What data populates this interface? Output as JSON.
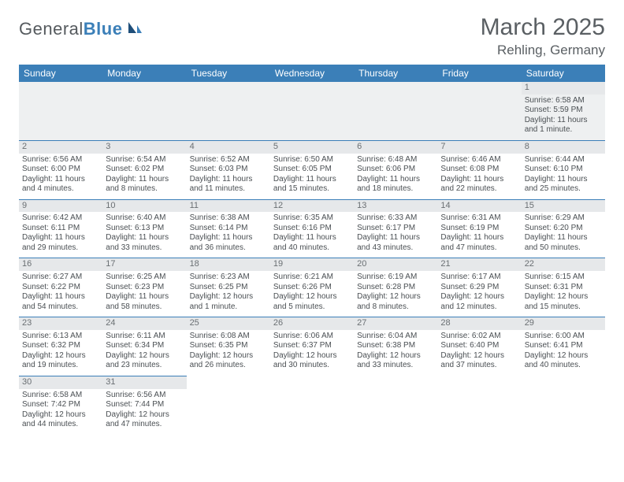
{
  "logo": {
    "text_general": "General",
    "text_blue": "Blue"
  },
  "title": "March 2025",
  "location": "Rehling, Germany",
  "colors": {
    "header_bg": "#3b7fb8",
    "daynum_bg": "#e6e8ea",
    "border": "#3b7fb8"
  },
  "weekdays": [
    "Sunday",
    "Monday",
    "Tuesday",
    "Wednesday",
    "Thursday",
    "Friday",
    "Saturday"
  ],
  "weeks": [
    [
      null,
      null,
      null,
      null,
      null,
      null,
      {
        "n": "1",
        "sr": "Sunrise: 6:58 AM",
        "ss": "Sunset: 5:59 PM",
        "dl": "Daylight: 11 hours and 1 minute."
      }
    ],
    [
      {
        "n": "2",
        "sr": "Sunrise: 6:56 AM",
        "ss": "Sunset: 6:00 PM",
        "dl": "Daylight: 11 hours and 4 minutes."
      },
      {
        "n": "3",
        "sr": "Sunrise: 6:54 AM",
        "ss": "Sunset: 6:02 PM",
        "dl": "Daylight: 11 hours and 8 minutes."
      },
      {
        "n": "4",
        "sr": "Sunrise: 6:52 AM",
        "ss": "Sunset: 6:03 PM",
        "dl": "Daylight: 11 hours and 11 minutes."
      },
      {
        "n": "5",
        "sr": "Sunrise: 6:50 AM",
        "ss": "Sunset: 6:05 PM",
        "dl": "Daylight: 11 hours and 15 minutes."
      },
      {
        "n": "6",
        "sr": "Sunrise: 6:48 AM",
        "ss": "Sunset: 6:06 PM",
        "dl": "Daylight: 11 hours and 18 minutes."
      },
      {
        "n": "7",
        "sr": "Sunrise: 6:46 AM",
        "ss": "Sunset: 6:08 PM",
        "dl": "Daylight: 11 hours and 22 minutes."
      },
      {
        "n": "8",
        "sr": "Sunrise: 6:44 AM",
        "ss": "Sunset: 6:10 PM",
        "dl": "Daylight: 11 hours and 25 minutes."
      }
    ],
    [
      {
        "n": "9",
        "sr": "Sunrise: 6:42 AM",
        "ss": "Sunset: 6:11 PM",
        "dl": "Daylight: 11 hours and 29 minutes."
      },
      {
        "n": "10",
        "sr": "Sunrise: 6:40 AM",
        "ss": "Sunset: 6:13 PM",
        "dl": "Daylight: 11 hours and 33 minutes."
      },
      {
        "n": "11",
        "sr": "Sunrise: 6:38 AM",
        "ss": "Sunset: 6:14 PM",
        "dl": "Daylight: 11 hours and 36 minutes."
      },
      {
        "n": "12",
        "sr": "Sunrise: 6:35 AM",
        "ss": "Sunset: 6:16 PM",
        "dl": "Daylight: 11 hours and 40 minutes."
      },
      {
        "n": "13",
        "sr": "Sunrise: 6:33 AM",
        "ss": "Sunset: 6:17 PM",
        "dl": "Daylight: 11 hours and 43 minutes."
      },
      {
        "n": "14",
        "sr": "Sunrise: 6:31 AM",
        "ss": "Sunset: 6:19 PM",
        "dl": "Daylight: 11 hours and 47 minutes."
      },
      {
        "n": "15",
        "sr": "Sunrise: 6:29 AM",
        "ss": "Sunset: 6:20 PM",
        "dl": "Daylight: 11 hours and 50 minutes."
      }
    ],
    [
      {
        "n": "16",
        "sr": "Sunrise: 6:27 AM",
        "ss": "Sunset: 6:22 PM",
        "dl": "Daylight: 11 hours and 54 minutes."
      },
      {
        "n": "17",
        "sr": "Sunrise: 6:25 AM",
        "ss": "Sunset: 6:23 PM",
        "dl": "Daylight: 11 hours and 58 minutes."
      },
      {
        "n": "18",
        "sr": "Sunrise: 6:23 AM",
        "ss": "Sunset: 6:25 PM",
        "dl": "Daylight: 12 hours and 1 minute."
      },
      {
        "n": "19",
        "sr": "Sunrise: 6:21 AM",
        "ss": "Sunset: 6:26 PM",
        "dl": "Daylight: 12 hours and 5 minutes."
      },
      {
        "n": "20",
        "sr": "Sunrise: 6:19 AM",
        "ss": "Sunset: 6:28 PM",
        "dl": "Daylight: 12 hours and 8 minutes."
      },
      {
        "n": "21",
        "sr": "Sunrise: 6:17 AM",
        "ss": "Sunset: 6:29 PM",
        "dl": "Daylight: 12 hours and 12 minutes."
      },
      {
        "n": "22",
        "sr": "Sunrise: 6:15 AM",
        "ss": "Sunset: 6:31 PM",
        "dl": "Daylight: 12 hours and 15 minutes."
      }
    ],
    [
      {
        "n": "23",
        "sr": "Sunrise: 6:13 AM",
        "ss": "Sunset: 6:32 PM",
        "dl": "Daylight: 12 hours and 19 minutes."
      },
      {
        "n": "24",
        "sr": "Sunrise: 6:11 AM",
        "ss": "Sunset: 6:34 PM",
        "dl": "Daylight: 12 hours and 23 minutes."
      },
      {
        "n": "25",
        "sr": "Sunrise: 6:08 AM",
        "ss": "Sunset: 6:35 PM",
        "dl": "Daylight: 12 hours and 26 minutes."
      },
      {
        "n": "26",
        "sr": "Sunrise: 6:06 AM",
        "ss": "Sunset: 6:37 PM",
        "dl": "Daylight: 12 hours and 30 minutes."
      },
      {
        "n": "27",
        "sr": "Sunrise: 6:04 AM",
        "ss": "Sunset: 6:38 PM",
        "dl": "Daylight: 12 hours and 33 minutes."
      },
      {
        "n": "28",
        "sr": "Sunrise: 6:02 AM",
        "ss": "Sunset: 6:40 PM",
        "dl": "Daylight: 12 hours and 37 minutes."
      },
      {
        "n": "29",
        "sr": "Sunrise: 6:00 AM",
        "ss": "Sunset: 6:41 PM",
        "dl": "Daylight: 12 hours and 40 minutes."
      }
    ],
    [
      {
        "n": "30",
        "sr": "Sunrise: 6:58 AM",
        "ss": "Sunset: 7:42 PM",
        "dl": "Daylight: 12 hours and 44 minutes."
      },
      {
        "n": "31",
        "sr": "Sunrise: 6:56 AM",
        "ss": "Sunset: 7:44 PM",
        "dl": "Daylight: 12 hours and 47 minutes."
      },
      null,
      null,
      null,
      null,
      null
    ]
  ]
}
